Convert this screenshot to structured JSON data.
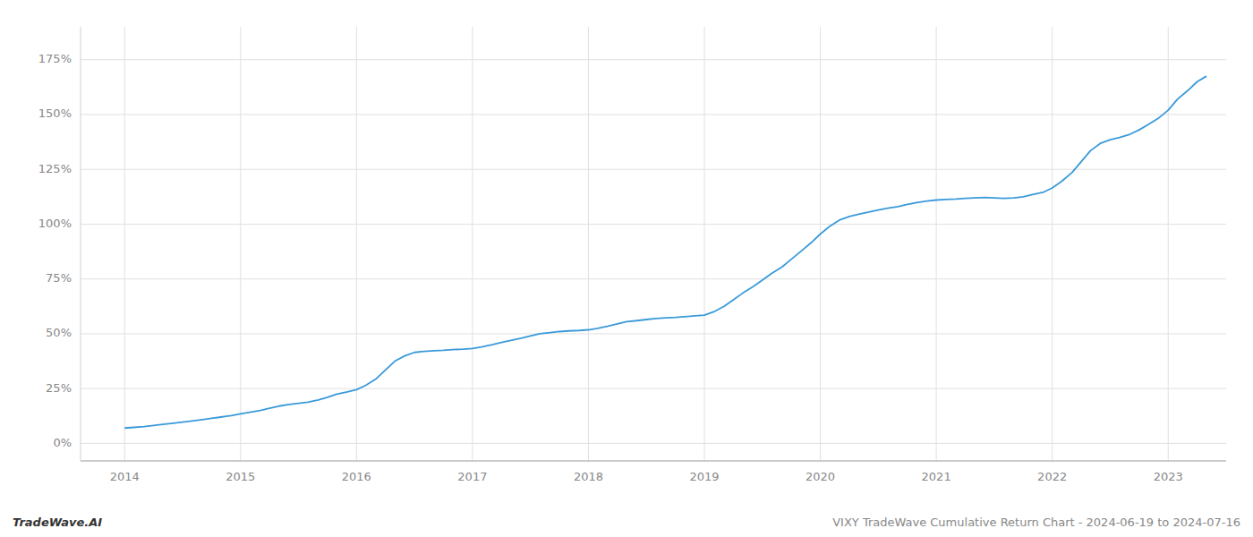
{
  "chart_data": {
    "type": "line",
    "title": "VIXY TradeWave Cumulative Return Chart - 2024-06-19 to 2024-07-16",
    "annotations": [
      "TradeWave.AI"
    ],
    "color": "#3a9ad9",
    "grid": true,
    "x": [
      2014.0,
      2014.08,
      2014.17,
      2014.25,
      2014.33,
      2014.42,
      2014.5,
      2014.58,
      2014.67,
      2014.75,
      2014.83,
      2014.92,
      2015.0,
      2015.08,
      2015.17,
      2015.25,
      2015.33,
      2015.42,
      2015.5,
      2015.58,
      2015.67,
      2015.75,
      2015.83,
      2015.92,
      2016.0,
      2016.08,
      2016.17,
      2016.25,
      2016.33,
      2016.42,
      2016.5,
      2016.58,
      2016.67,
      2016.75,
      2016.83,
      2016.92,
      2017.0,
      2017.08,
      2017.17,
      2017.25,
      2017.33,
      2017.42,
      2017.5,
      2017.58,
      2017.67,
      2017.75,
      2017.83,
      2017.92,
      2018.0,
      2018.08,
      2018.17,
      2018.25,
      2018.33,
      2018.42,
      2018.5,
      2018.58,
      2018.67,
      2018.75,
      2018.83,
      2018.92,
      2019.0,
      2019.08,
      2019.17,
      2019.25,
      2019.33,
      2019.42,
      2019.5,
      2019.58,
      2019.67,
      2019.75,
      2019.83,
      2019.92,
      2020.0,
      2020.08,
      2020.17,
      2020.25,
      2020.33,
      2020.42,
      2020.5,
      2020.58,
      2020.67,
      2020.75,
      2020.83,
      2020.92,
      2021.0,
      2021.08,
      2021.17,
      2021.25,
      2021.33,
      2021.42,
      2021.5,
      2021.58,
      2021.67,
      2021.75,
      2021.83,
      2021.92,
      2022.0,
      2022.08,
      2022.17,
      2022.25,
      2022.33,
      2022.42,
      2022.5,
      2022.58,
      2022.67,
      2022.75,
      2022.83,
      2022.92,
      2023.0,
      2023.08,
      2023.17,
      2023.25,
      2023.33
    ],
    "values": [
      7.0,
      7.3,
      7.7,
      8.2,
      8.7,
      9.2,
      9.7,
      10.2,
      10.8,
      11.4,
      12.0,
      12.7,
      13.5,
      14.2,
      15.0,
      16.0,
      17.0,
      17.8,
      18.3,
      18.8,
      19.8,
      21.0,
      22.5,
      23.5,
      24.5,
      26.5,
      29.5,
      33.5,
      37.5,
      40.0,
      41.5,
      42.0,
      42.3,
      42.5,
      42.8,
      43.0,
      43.3,
      44.0,
      45.0,
      46.0,
      47.0,
      48.0,
      49.0,
      50.0,
      50.5,
      51.0,
      51.3,
      51.5,
      51.8,
      52.5,
      53.5,
      54.5,
      55.5,
      56.0,
      56.5,
      57.0,
      57.3,
      57.5,
      57.8,
      58.2,
      58.5,
      60.0,
      62.5,
      65.5,
      68.5,
      71.5,
      74.5,
      77.5,
      80.5,
      84.0,
      87.5,
      91.5,
      95.5,
      99.0,
      102.0,
      103.5,
      104.5,
      105.5,
      106.5,
      107.3,
      108.0,
      109.0,
      109.8,
      110.5,
      111.0,
      111.3,
      111.5,
      111.8,
      112.0,
      112.2,
      112.0,
      111.8,
      112.0,
      112.5,
      113.5,
      114.5,
      116.5,
      119.5,
      123.5,
      128.5,
      133.5,
      137.0,
      138.5,
      139.5,
      141.0,
      143.0,
      145.5,
      148.5,
      152.0,
      157.0,
      161.0,
      165.0,
      167.5
    ],
    "xlim": [
      2013.62,
      2023.5
    ],
    "ylim": [
      -8,
      190
    ],
    "xticks": [
      2014,
      2015,
      2016,
      2017,
      2018,
      2019,
      2020,
      2021,
      2022,
      2023
    ],
    "yticks": [
      {
        "value": 0,
        "label": "0%"
      },
      {
        "value": 25,
        "label": "25%"
      },
      {
        "value": 50,
        "label": "50%"
      },
      {
        "value": 75,
        "label": "75%"
      },
      {
        "value": 100,
        "label": "100%"
      },
      {
        "value": 125,
        "label": "125%"
      },
      {
        "value": 150,
        "label": "150%"
      },
      {
        "value": 175,
        "label": "175%"
      }
    ]
  }
}
